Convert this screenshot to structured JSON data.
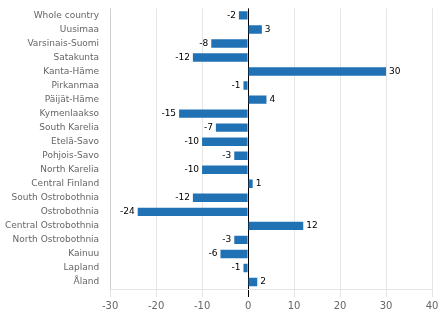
{
  "chart_data": {
    "type": "bar",
    "orientation": "horizontal",
    "categories": [
      "Whole country",
      "Uusimaa",
      "Varsinais-Suomi",
      "Satakunta",
      "Kanta-Häme",
      "Pirkanmaa",
      "Päijät-Häme",
      "Kymenlaakso",
      "South Karelia",
      "Etelä-Savo",
      "Pohjois-Savo",
      "North Karelia",
      "Central Finland",
      "South Ostrobothnia",
      "Ostrobothnia",
      "Central Ostrobothnia",
      "North Ostrobothnia",
      "Kainuu",
      "Lapland",
      "Åland"
    ],
    "values": [
      -2,
      3,
      -8,
      -12,
      30,
      -1,
      4,
      -15,
      -7,
      -10,
      -3,
      -10,
      1,
      -12,
      -24,
      12,
      -3,
      -6,
      -1,
      2
    ],
    "color": "#2171b5",
    "xlim": [
      -30,
      40
    ],
    "xticks": [
      -30,
      -20,
      -10,
      0,
      10,
      20,
      30,
      40
    ],
    "grid": true,
    "data_labels": true
  }
}
